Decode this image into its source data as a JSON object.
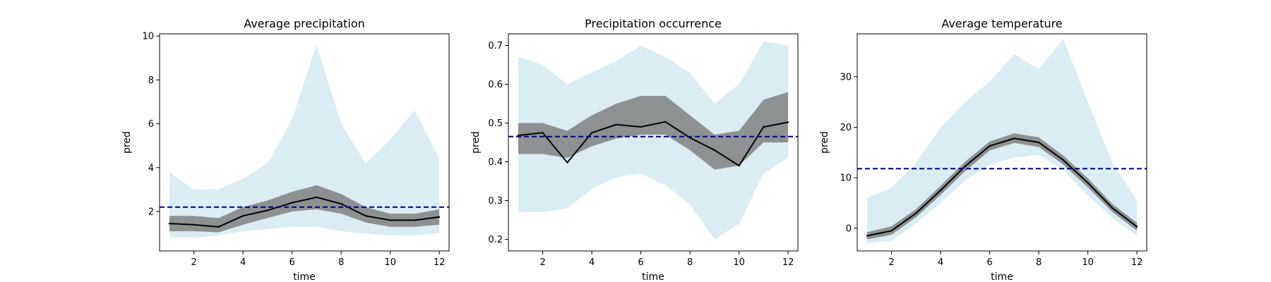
{
  "chart_data": [
    {
      "type": "line",
      "title": "Average precipitation",
      "xlabel": "time",
      "ylabel": "pred",
      "xlim": [
        0.6,
        12.4
      ],
      "ylim": [
        0.2,
        10.1
      ],
      "xticks": [
        2,
        4,
        6,
        8,
        10,
        12
      ],
      "yticks": [
        2,
        4,
        6,
        8,
        10
      ],
      "grid": false,
      "x": [
        1,
        2,
        3,
        4,
        5,
        6,
        7,
        8,
        9,
        10,
        11,
        12
      ],
      "series": [
        {
          "values": [
            1.45,
            1.4,
            1.3,
            1.8,
            2.05,
            2.4,
            2.65,
            2.35,
            1.8,
            1.6,
            1.6,
            1.75
          ],
          "color": "#000000"
        }
      ],
      "bands": [
        {
          "color": "#808080",
          "lower": [
            1.1,
            1.1,
            1.05,
            1.4,
            1.7,
            2.0,
            2.1,
            1.9,
            1.5,
            1.3,
            1.3,
            1.4
          ],
          "upper": [
            1.8,
            1.8,
            1.7,
            2.2,
            2.5,
            2.9,
            3.2,
            2.8,
            2.2,
            1.9,
            1.9,
            2.1
          ]
        },
        {
          "color": "#add8e6",
          "lower": [
            0.8,
            0.8,
            0.9,
            1.1,
            1.2,
            1.3,
            1.3,
            1.1,
            1.0,
            0.9,
            0.9,
            1.0
          ],
          "upper": [
            3.8,
            3.0,
            3.0,
            3.5,
            4.2,
            6.2,
            9.6,
            6.0,
            4.2,
            5.3,
            6.6,
            4.4
          ]
        }
      ],
      "hline": {
        "value": 2.2,
        "color": "#00008b",
        "style": "dashed"
      }
    },
    {
      "type": "line",
      "title": "Precipitation occurrence",
      "xlabel": "time",
      "ylabel": "pred",
      "xlim": [
        0.6,
        12.4
      ],
      "ylim": [
        0.17,
        0.73
      ],
      "xticks": [
        2,
        4,
        6,
        8,
        10,
        12
      ],
      "yticks": [
        0.2,
        0.3,
        0.4,
        0.5,
        0.6,
        0.7
      ],
      "grid": false,
      "x": [
        1,
        2,
        3,
        4,
        5,
        6,
        7,
        8,
        9,
        10,
        11,
        12
      ],
      "series": [
        {
          "values": [
            0.468,
            0.475,
            0.398,
            0.475,
            0.496,
            0.49,
            0.503,
            0.462,
            0.43,
            0.39,
            0.49,
            0.502
          ],
          "color": "#000000"
        }
      ],
      "bands": [
        {
          "color": "#808080",
          "lower": [
            0.42,
            0.42,
            0.41,
            0.44,
            0.46,
            0.47,
            0.47,
            0.43,
            0.38,
            0.39,
            0.45,
            0.45
          ],
          "upper": [
            0.5,
            0.5,
            0.48,
            0.52,
            0.55,
            0.57,
            0.57,
            0.52,
            0.47,
            0.48,
            0.56,
            0.58
          ]
        },
        {
          "color": "#add8e6",
          "lower": [
            0.27,
            0.27,
            0.28,
            0.33,
            0.36,
            0.37,
            0.34,
            0.29,
            0.2,
            0.24,
            0.37,
            0.41
          ],
          "upper": [
            0.67,
            0.65,
            0.6,
            0.63,
            0.66,
            0.7,
            0.67,
            0.63,
            0.55,
            0.6,
            0.71,
            0.7
          ]
        }
      ],
      "hline": {
        "value": 0.465,
        "color": "#00008b",
        "style": "dashed"
      }
    },
    {
      "type": "line",
      "title": "Average temperature",
      "xlabel": "time",
      "ylabel": "pred",
      "xlim": [
        0.6,
        12.4
      ],
      "ylim": [
        -4.5,
        38.5
      ],
      "xticks": [
        2,
        4,
        6,
        8,
        10,
        12
      ],
      "yticks": [
        0,
        10,
        20,
        30
      ],
      "grid": false,
      "x": [
        1,
        2,
        3,
        4,
        5,
        6,
        7,
        8,
        9,
        10,
        11,
        12
      ],
      "series": [
        {
          "values": [
            -1.5,
            -0.5,
            3.0,
            7.5,
            12.3,
            16.3,
            17.8,
            17.0,
            13.5,
            9.0,
            4.0,
            0.3
          ],
          "color": "#000000"
        }
      ],
      "bands": [
        {
          "color": "#808080",
          "lower": [
            -2.2,
            -1.3,
            2.2,
            6.6,
            11.3,
            15.4,
            16.9,
            16.1,
            12.6,
            8.1,
            3.2,
            -0.5
          ],
          "upper": [
            -0.8,
            0.4,
            3.8,
            8.4,
            13.2,
            17.2,
            18.8,
            18.0,
            14.4,
            9.9,
            4.8,
            1.1
          ]
        },
        {
          "color": "#add8e6",
          "lower": [
            -3.0,
            -2.5,
            1.0,
            5.0,
            9.5,
            12.5,
            14.0,
            14.5,
            11.5,
            6.5,
            2.0,
            -1.5
          ],
          "upper": [
            6.0,
            8.0,
            13.0,
            20.0,
            25.0,
            29.0,
            34.5,
            31.5,
            37.5,
            25.0,
            13.0,
            5.5
          ]
        }
      ],
      "hline": {
        "value": 11.8,
        "color": "#00008b",
        "style": "dashed"
      }
    }
  ]
}
